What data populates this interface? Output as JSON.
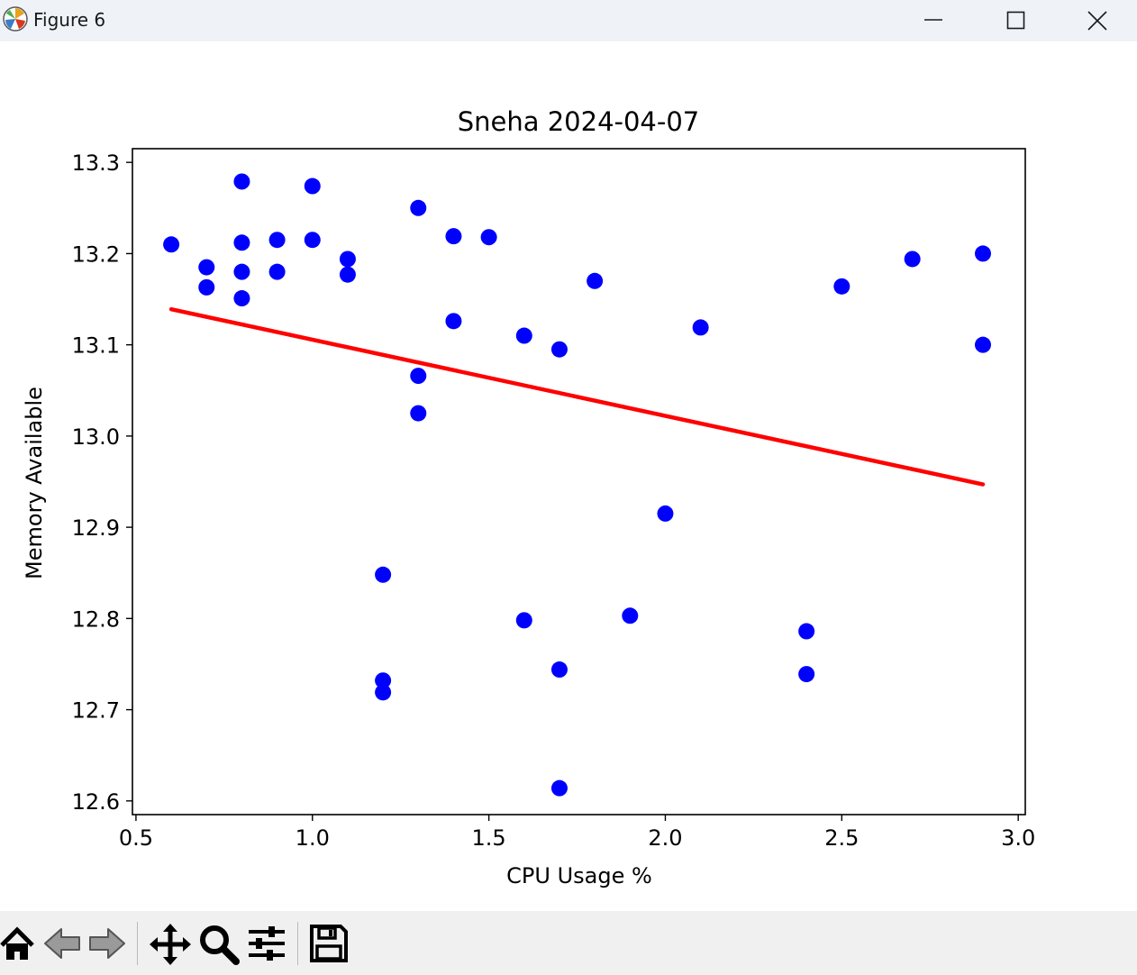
{
  "window": {
    "title": "Figure 6",
    "icons": [
      "app-icon",
      "minimize-icon",
      "maximize-icon",
      "close-icon"
    ]
  },
  "toolbar": {
    "tools": [
      "home-icon",
      "back-arrow-icon",
      "forward-arrow-icon",
      "pan-icon",
      "zoom-icon",
      "configure-subplots-icon",
      "save-icon"
    ]
  },
  "chart_data": {
    "type": "scatter",
    "title": "Sneha 2024-04-07",
    "xlabel": "CPU Usage %",
    "ylabel": "Memory Available",
    "xlim": [
      0.49,
      3.02
    ],
    "ylim": [
      12.585,
      13.315
    ],
    "xticks": [
      "0.5",
      "1.0",
      "1.5",
      "2.0",
      "2.5",
      "3.0"
    ],
    "yticks": [
      "12.6",
      "12.7",
      "12.8",
      "12.9",
      "13.0",
      "13.1",
      "13.2",
      "13.3"
    ],
    "grid": false,
    "colors": {
      "points": "#0000ff",
      "trendline": "#ff0000"
    },
    "series": [
      {
        "kind": "scatter",
        "points": [
          [
            0.6,
            13.21
          ],
          [
            0.7,
            13.185
          ],
          [
            0.7,
            13.163
          ],
          [
            0.8,
            13.279
          ],
          [
            0.8,
            13.212
          ],
          [
            0.8,
            13.18
          ],
          [
            0.8,
            13.151
          ],
          [
            0.9,
            13.215
          ],
          [
            0.9,
            13.18
          ],
          [
            1.0,
            13.274
          ],
          [
            1.0,
            13.215
          ],
          [
            1.1,
            13.194
          ],
          [
            1.1,
            13.177
          ],
          [
            1.2,
            12.848
          ],
          [
            1.2,
            12.732
          ],
          [
            1.2,
            12.719
          ],
          [
            1.3,
            13.25
          ],
          [
            1.3,
            13.066
          ],
          [
            1.3,
            13.025
          ],
          [
            1.4,
            13.219
          ],
          [
            1.4,
            13.126
          ],
          [
            1.5,
            13.218
          ],
          [
            1.6,
            13.11
          ],
          [
            1.6,
            12.798
          ],
          [
            1.7,
            13.095
          ],
          [
            1.7,
            12.744
          ],
          [
            1.7,
            12.614
          ],
          [
            1.8,
            13.17
          ],
          [
            1.9,
            12.803
          ],
          [
            2.0,
            12.915
          ],
          [
            2.1,
            13.119
          ],
          [
            2.4,
            12.786
          ],
          [
            2.4,
            12.739
          ],
          [
            2.5,
            13.164
          ],
          [
            2.7,
            13.194
          ],
          [
            2.9,
            13.2
          ],
          [
            2.9,
            13.1
          ]
        ]
      },
      {
        "kind": "line",
        "points": [
          [
            0.6,
            13.139
          ],
          [
            2.9,
            12.947
          ]
        ]
      }
    ]
  }
}
